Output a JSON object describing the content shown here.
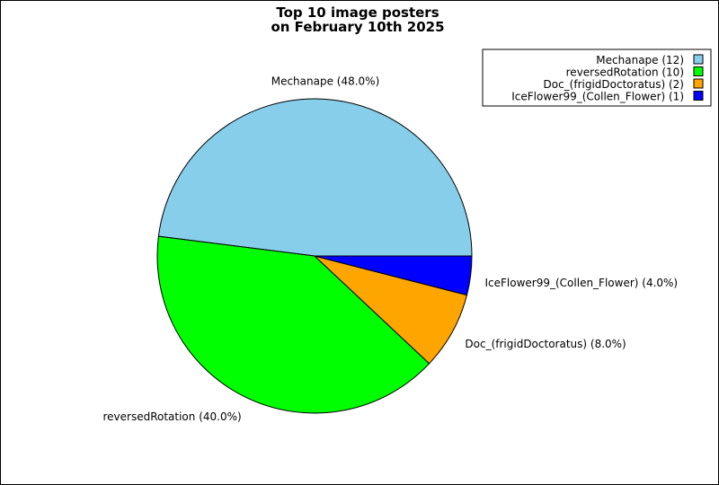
{
  "chart_data": {
    "type": "pie",
    "title": "Top 10 image posters",
    "subtitle": "on February 10th 2025",
    "slices": [
      {
        "name": "Mechanape",
        "value": 12,
        "percent": 48.0,
        "label": "Mechanape (48.0%)",
        "legend": "Mechanape (12)",
        "color": "#87CEEB"
      },
      {
        "name": "reversedRotation",
        "value": 10,
        "percent": 40.0,
        "label": "reversedRotation (40.0%)",
        "legend": "reversedRotation (10)",
        "color": "#00FF00"
      },
      {
        "name": "Doc_(frigidDoctoratus)",
        "value": 2,
        "percent": 8.0,
        "label": "Doc_(frigidDoctoratus) (8.0%)",
        "legend": "Doc_(frigidDoctoratus) (2)",
        "color": "#FFA500"
      },
      {
        "name": "IceFlower99_(Collen_Flower)",
        "value": 1,
        "percent": 4.0,
        "label": "IceFlower99_(Collen_Flower) (4.0%)",
        "legend": "IceFlower99_(Collen_Flower) (1)",
        "color": "#0000FF"
      }
    ],
    "legend_position": "top-right"
  }
}
